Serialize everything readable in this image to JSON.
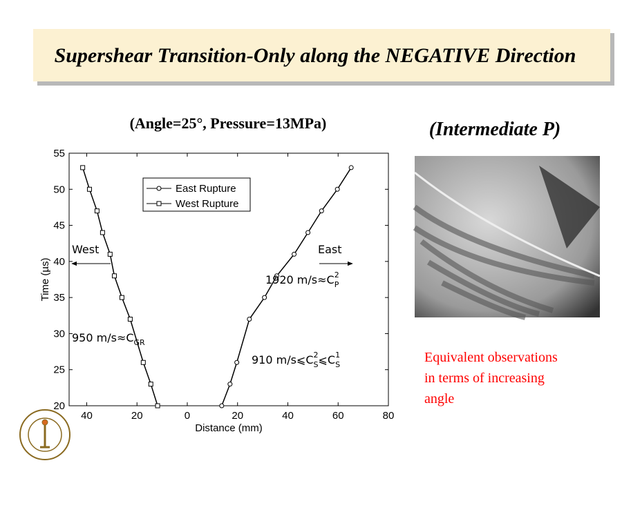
{
  "slide": {
    "title": "Supershear Transition-Only along the NEGATIVE Direction",
    "image_caption": "(Intermediate P)",
    "note_lines": [
      "Equivalent observations",
      "in terms of increasing",
      "angle"
    ]
  },
  "chart_data": {
    "type": "line",
    "title": "(Angle=25°, Pressure=13MPa)",
    "xlabel": "Distance (mm)",
    "ylabel": "Time (µs)",
    "xlim": [
      -47,
      80
    ],
    "ylim": [
      20,
      55
    ],
    "xticks": [
      {
        "value": -40,
        "label": "40"
      },
      {
        "value": -20,
        "label": "20"
      },
      0,
      20,
      40,
      60,
      80
    ],
    "yticks": [
      20,
      25,
      30,
      35,
      40,
      45,
      50,
      55
    ],
    "legend": "upper left",
    "series": [
      {
        "name": "East Rupture",
        "color": "#000000",
        "marker": "circle",
        "x": [
          13.7,
          17.0,
          19.7,
          24.7,
          30.7,
          35.6,
          42.5,
          48.0,
          53.4,
          59.7,
          65.2
        ],
        "values": [
          20,
          23,
          26,
          32,
          35,
          38,
          41,
          44,
          47,
          50,
          53
        ]
      },
      {
        "name": "West Rupture",
        "color": "#000000",
        "marker": "square",
        "x": [
          -11.8,
          -14.5,
          -17.5,
          -22.7,
          -26.0,
          -29.0,
          -30.7,
          -33.7,
          -35.9,
          -38.9,
          -41.6
        ],
        "values": [
          20,
          23,
          26,
          32,
          35,
          38,
          41,
          44,
          47,
          50,
          53
        ]
      }
    ],
    "annotations": [
      {
        "text": "West"
      },
      {
        "text": "East"
      },
      {
        "text": "1920 m/s≈C",
        "sub": "P",
        "sup": "2"
      },
      {
        "text": "950 m/s≈C",
        "sub": "GR"
      },
      {
        "text": "910 m/s⩽C",
        "sub": "S",
        "sup": "2",
        "text2": "⩽C",
        "sub2": "S",
        "sup2": "1"
      }
    ]
  }
}
